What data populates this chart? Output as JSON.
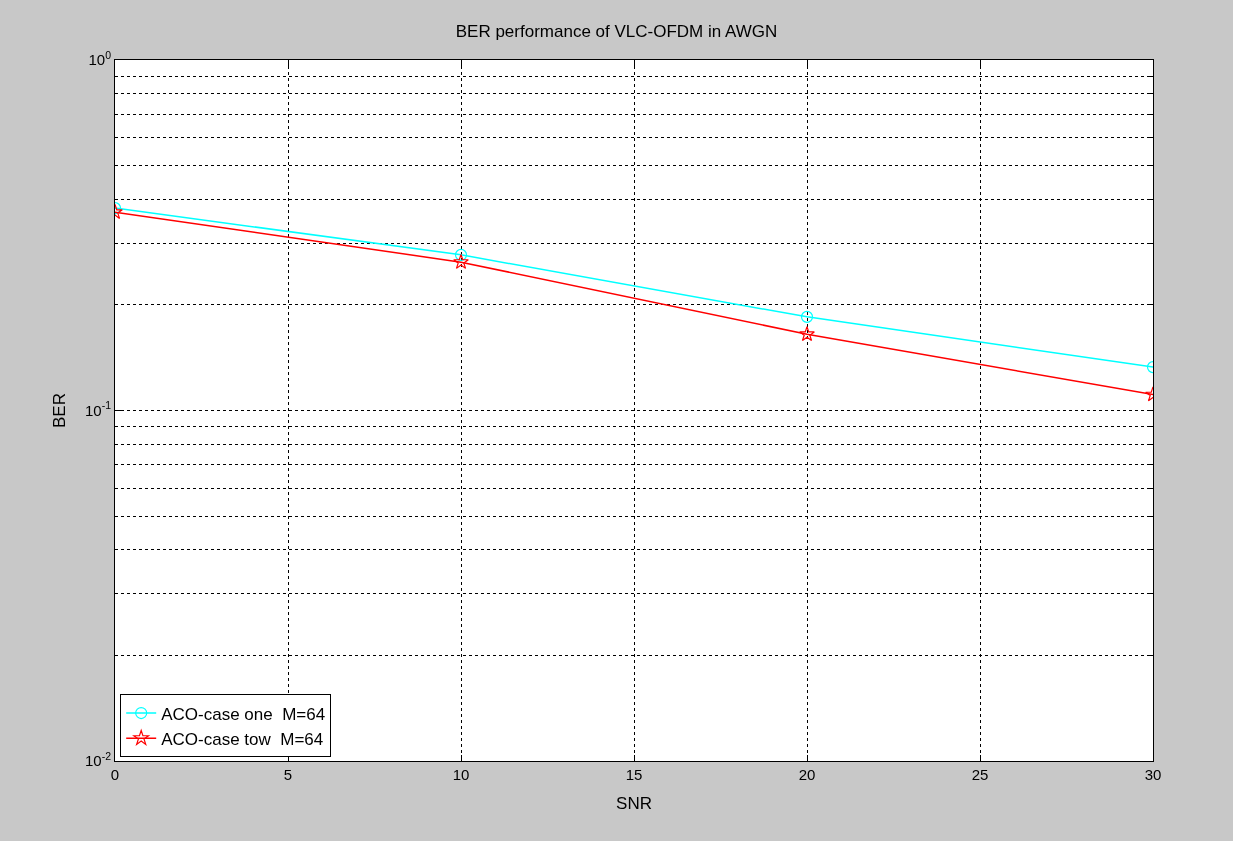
{
  "chart_data": {
    "type": "line",
    "title": "BER performance of VLC-OFDM in AWGN",
    "xlabel": "SNR",
    "ylabel": "BER",
    "x": [
      0,
      10,
      20,
      30
    ],
    "series": [
      {
        "name": "ACO-case one  M=64",
        "color": "#00ffff",
        "marker": "circle",
        "values": [
          0.378,
          0.278,
          0.185,
          0.133
        ]
      },
      {
        "name": "ACO-case tow  M=64",
        "color": "#ff0000",
        "marker": "star",
        "values": [
          0.368,
          0.265,
          0.165,
          0.111
        ]
      }
    ],
    "log": "y",
    "xlim": [
      0,
      30
    ],
    "xticks": [
      0,
      5,
      10,
      15,
      20,
      25,
      30
    ],
    "ylim": [
      0.01,
      1
    ],
    "yticks": [
      {
        "value": 0.01,
        "label": "10$^{-2}$"
      },
      {
        "value": 0.1,
        "label": "10$^{-1}$"
      },
      {
        "value": 1,
        "label": "10$^{0}$"
      }
    ],
    "grid": true,
    "legend": "bottom left",
    "line_style": "solid"
  }
}
